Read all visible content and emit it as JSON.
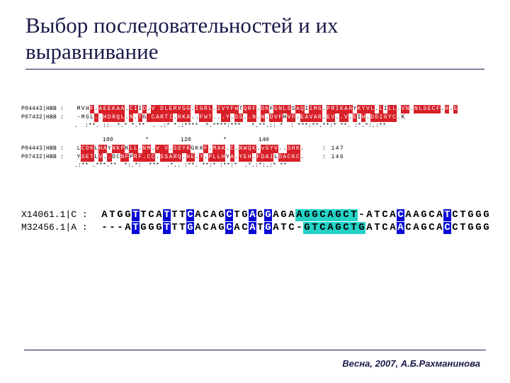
{
  "header": {
    "title_line1": "Выбор последовательностей и их",
    "title_line2": "выравнивание"
  },
  "aln1": {
    "labels": [
      "P04443|HBB :",
      "P07432|HBB :"
    ],
    "rows": [
      [
        [
          "p",
          "MVH"
        ],
        [
          "r",
          "F"
        ],
        [
          "p",
          "."
        ],
        [
          "r",
          "AEEKAA"
        ],
        [
          "p",
          "."
        ],
        [
          "r",
          "CI"
        ],
        [
          "p",
          "I"
        ],
        [
          "r",
          "D"
        ],
        [
          "p",
          "."
        ],
        [
          "r",
          "V"
        ],
        [
          "r",
          " DLERVGG"
        ],
        [
          "p",
          "."
        ],
        [
          "r",
          "IGRL"
        ],
        [
          "p",
          "."
        ],
        [
          "r",
          "IVYFW"
        ],
        [
          "p",
          "T"
        ],
        [
          "r",
          "QRF"
        ],
        [
          "p",
          "."
        ],
        [
          "r",
          "DK"
        ],
        [
          "p",
          "F"
        ],
        [
          "r",
          "GNLS"
        ],
        [
          "p",
          "S"
        ],
        [
          "r",
          "AQ"
        ],
        [
          "p",
          "I"
        ],
        [
          "r",
          "IMG"
        ],
        [
          "p",
          "."
        ],
        [
          "r",
          "PRIKAH"
        ],
        [
          "p",
          "Y"
        ],
        [
          "r",
          "KYVL"
        ],
        [
          "p",
          "."
        ],
        [
          "r",
          "L"
        ],
        [
          "p",
          "I"
        ],
        [
          "r",
          "LL"
        ],
        [
          "p",
          "."
        ],
        [
          "r",
          "VN"
        ],
        [
          "p",
          "."
        ],
        [
          "r",
          ""
        ],
        [
          "r",
          "NL"
        ],
        [
          "r",
          "SECF"
        ],
        [
          "p",
          "."
        ],
        [
          "r",
          "H"
        ],
        [
          "p",
          "."
        ],
        [
          "r",
          "E"
        ]
      ],
      [
        [
          "g",
          "-"
        ],
        [
          "p",
          "MGL"
        ],
        [
          "r",
          "."
        ],
        [
          "p",
          "."
        ],
        [
          "r",
          "HDRQL"
        ],
        [
          "p",
          "."
        ],
        [
          "r",
          "N"
        ],
        [
          "p",
          "."
        ],
        [
          "r",
          "T"
        ],
        [
          "p",
          "G"
        ],
        [
          "r",
          " CARTI"
        ],
        [
          "p",
          "."
        ],
        [
          "r",
          "RKA"
        ],
        [
          "p",
          "."
        ],
        [
          "p",
          "."
        ],
        [
          "r",
          "FWT"
        ],
        [
          "p",
          "."
        ],
        [
          "p",
          "."
        ],
        [
          "r",
          ".Y"
        ],
        [
          "p",
          "."
        ],
        [
          "r",
          "SS"
        ],
        [
          "p",
          "."
        ],
        [
          "r",
          ".N"
        ],
        [
          "p",
          "."
        ],
        [
          "r",
          "N"
        ],
        [
          "p",
          "."
        ],
        [
          "r",
          "DVF"
        ],
        [
          "p",
          "H"
        ],
        [
          "r",
          "VF"
        ],
        [
          "p",
          "."
        ],
        [
          "r",
          "EAVAR"
        ],
        [
          "p",
          "."
        ],
        [
          "r",
          "E"
        ],
        [
          "r",
          "V"
        ],
        [
          "p",
          "."
        ],
        [
          "r",
          ".V"
        ],
        [
          "p",
          "."
        ],
        [
          "r",
          "E"
        ],
        [
          "p",
          "I"
        ],
        [
          "r",
          "H"
        ],
        [
          "p",
          "."
        ],
        [
          "r",
          "DDIGY"
        ],
        [
          "r",
          "C"
        ],
        [
          "p",
          ".K"
        ]
      ]
    ],
    "cons1": "               .  :**. ::  *.* *.**  . .:* *.:****  *.****:***   *.**.:: *  : ***:**.**:* **. :*.*:.:**",
    "ruler": "                       100         *         120         *         140",
    "rows2": [
      [
        [
          "p",
          "L"
        ],
        [
          "r",
          "CDK"
        ],
        [
          "p",
          "L"
        ],
        [
          "r",
          "HA"
        ],
        [
          "p",
          "Y"
        ],
        [
          "r",
          "NKP"
        ],
        [
          "p",
          "K"
        ],
        [
          "r",
          "LL"
        ],
        [
          "p",
          "."
        ],
        [
          "r",
          "NM"
        ],
        [
          "p",
          "."
        ],
        [
          "r",
          "v"
        ],
        [
          "r",
          " V"
        ],
        [
          "p",
          "."
        ],
        [
          "r",
          "SSYK"
        ],
        [
          "p",
          "GK"
        ],
        [
          "p",
          "K"
        ],
        [
          "r",
          "F"
        ],
        [
          "p",
          "."
        ],
        [
          "r",
          "MA"
        ],
        [
          "r",
          "K"
        ],
        [
          "p",
          "."
        ],
        [
          "r",
          "C"
        ],
        [
          "p",
          "."
        ],
        [
          "r",
          "NWQK"
        ],
        [
          "p",
          "."
        ],
        [
          "r",
          "vGYV"
        ],
        [
          "p",
          "."
        ],
        [
          "p",
          "."
        ],
        [
          "r",
          "SHK"
        ],
        [
          "p",
          "."
        ],
        [
          "p",
          "    : 147"
        ]
      ],
      [
        [
          "p",
          "Y"
        ],
        [
          "r",
          "SET"
        ],
        [
          "p",
          "L"
        ],
        [
          "r",
          "V"
        ],
        [
          "p",
          "."
        ],
        [
          "r",
          "."
        ],
        [
          "p",
          "DC"
        ],
        [
          "r",
          "NF"
        ],
        [
          "p",
          "P"
        ],
        [
          "r",
          "RF"
        ],
        [
          "r",
          "."
        ],
        [
          "r",
          "CC"
        ],
        [
          "p",
          "."
        ],
        [
          "r",
          "S"
        ],
        [
          "r",
          "SARQ"
        ],
        [
          "p",
          "."
        ],
        [
          "r",
          "HE"
        ],
        [
          "p",
          "."
        ],
        [
          "r",
          "Y"
        ],
        [
          "p",
          "."
        ],
        [
          "r",
          "PLLH"
        ],
        [
          "p",
          "Y"
        ],
        [
          "r",
          "A"
        ],
        [
          "p",
          "."
        ],
        [
          "r",
          "YEH"
        ],
        [
          "p",
          "."
        ],
        [
          "r",
          "FDAI"
        ],
        [
          "p",
          "L"
        ],
        [
          "r",
          "D"
        ],
        [
          "r",
          "AC"
        ],
        [
          "r",
          "KC"
        ],
        [
          "p",
          "."
        ],
        [
          "p",
          "    : 146"
        ]
      ]
    ],
    "cons2": "               .:** .***.**  *:.*:  ***  .*.. :**. **:* :**:*  .*.:*:.:* **  "
  },
  "dna": {
    "labels": [
      "X14061.1|C :",
      "M32456.1|A :"
    ],
    "rows": [
      [
        [
          "p",
          "A"
        ],
        [
          "p",
          "T"
        ],
        [
          "p",
          "G"
        ],
        [
          "p",
          "G"
        ],
        [
          "b",
          "T"
        ],
        [
          "p",
          "T"
        ],
        [
          "p",
          "C"
        ],
        [
          "p",
          "A"
        ],
        [
          "b",
          "T"
        ],
        [
          "p",
          "T"
        ],
        [
          "p",
          "T"
        ],
        [
          "b",
          "C"
        ],
        [
          "p",
          "A"
        ],
        [
          "p",
          "C"
        ],
        [
          "p",
          "A"
        ],
        [
          "p",
          "G"
        ],
        [
          "b",
          "C"
        ],
        [
          "p",
          "T"
        ],
        [
          "p",
          "G"
        ],
        [
          "b",
          "A"
        ],
        [
          "p",
          "G"
        ],
        [
          "b",
          "G"
        ],
        [
          "p",
          "A"
        ],
        [
          "p",
          "G"
        ],
        [
          "p",
          "A"
        ],
        [
          "c",
          "A"
        ],
        [
          "c",
          "G"
        ],
        [
          "c",
          "G"
        ],
        [
          "c",
          "C"
        ],
        [
          "c",
          "A"
        ],
        [
          "c",
          "G"
        ],
        [
          "c",
          "C"
        ],
        [
          "c",
          "T"
        ],
        [
          "g",
          "-"
        ],
        [
          "p",
          "A"
        ],
        [
          "p",
          "T"
        ],
        [
          "p",
          "C"
        ],
        [
          "p",
          "A"
        ],
        [
          "b",
          "C"
        ],
        [
          "p",
          "A"
        ],
        [
          "p",
          "A"
        ],
        [
          "p",
          "G"
        ],
        [
          "p",
          "C"
        ],
        [
          "p",
          "A"
        ],
        [
          "b",
          "T"
        ],
        [
          "p",
          "C"
        ],
        [
          "p",
          "T"
        ],
        [
          "p",
          "G"
        ],
        [
          "p",
          "G"
        ],
        [
          "p",
          "G"
        ]
      ],
      [
        [
          "g",
          "-"
        ],
        [
          "g",
          "-"
        ],
        [
          "g",
          "-"
        ],
        [
          "p",
          "A"
        ],
        [
          "b",
          "T"
        ],
        [
          "p",
          "G"
        ],
        [
          "p",
          "G"
        ],
        [
          "p",
          "G"
        ],
        [
          "b",
          "T"
        ],
        [
          "p",
          "T"
        ],
        [
          "p",
          "T"
        ],
        [
          "b",
          "G"
        ],
        [
          "p",
          "A"
        ],
        [
          "p",
          "C"
        ],
        [
          "p",
          "A"
        ],
        [
          "p",
          "G"
        ],
        [
          "b",
          "C"
        ],
        [
          "p",
          "A"
        ],
        [
          "p",
          "C"
        ],
        [
          "b",
          "A"
        ],
        [
          "p",
          "T"
        ],
        [
          "b",
          "G"
        ],
        [
          "p",
          "A"
        ],
        [
          "p",
          "T"
        ],
        [
          "p",
          "C"
        ],
        [
          "g",
          "-"
        ],
        [
          "c",
          "G"
        ],
        [
          "c",
          "T"
        ],
        [
          "c",
          "C"
        ],
        [
          "c",
          "A"
        ],
        [
          "c",
          "G"
        ],
        [
          "c",
          "C"
        ],
        [
          "c",
          "T"
        ],
        [
          "c",
          "G"
        ],
        [
          "p",
          "A"
        ],
        [
          "p",
          "T"
        ],
        [
          "p",
          "C"
        ],
        [
          "p",
          "A"
        ],
        [
          "b",
          "A"
        ],
        [
          "p",
          "C"
        ],
        [
          "p",
          "A"
        ],
        [
          "p",
          "G"
        ],
        [
          "p",
          "C"
        ],
        [
          "p",
          "A"
        ],
        [
          "b",
          "C"
        ],
        [
          "p",
          "C"
        ],
        [
          "p",
          "T"
        ],
        [
          "p",
          "G"
        ],
        [
          "p",
          "G"
        ],
        [
          "p",
          "G"
        ]
      ]
    ]
  },
  "footer": {
    "text": "Весна, 2007, А.Б.Рахманинова"
  },
  "colors": {
    "red": "#d81f27",
    "blue": "#0a0ad6",
    "cyan": "#24d2c7",
    "ink": "#1a1a4a",
    "bg": "#ffffff"
  }
}
